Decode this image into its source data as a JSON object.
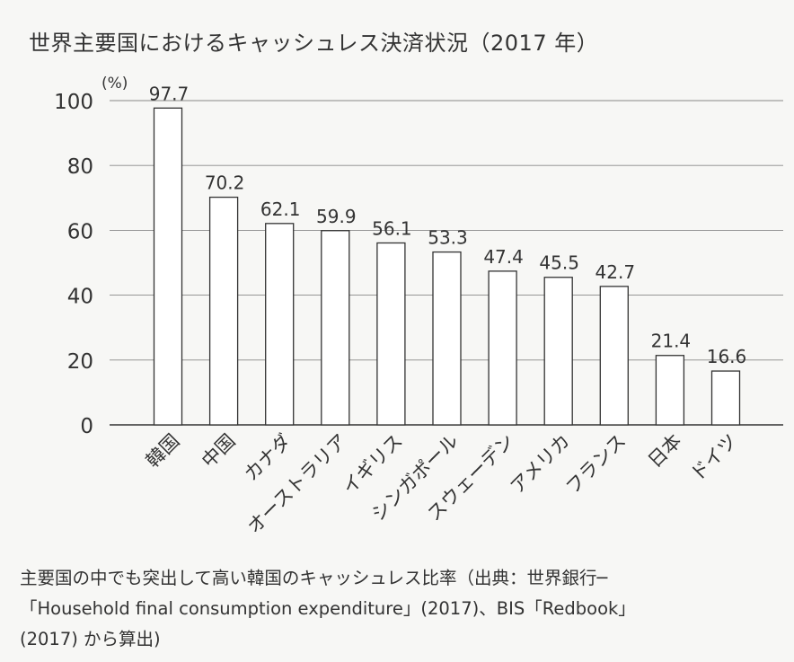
{
  "title": "世界主要国におけるキャッシュレス決済状況（2017 年）",
  "chart_data": {
    "type": "bar",
    "unit": "(%)",
    "categories": [
      "韓国",
      "中国",
      "カナダ",
      "オーストラリア",
      "イギリス",
      "シンガポール",
      "スウェーデン",
      "アメリカ",
      "フランス",
      "日本",
      "ドイツ"
    ],
    "values": [
      97.7,
      70.2,
      62.1,
      59.9,
      56.1,
      53.3,
      47.4,
      45.5,
      42.7,
      21.4,
      16.6
    ],
    "value_labels": [
      "97.7",
      "70.2",
      "62.1",
      "59.9",
      "56.1",
      "53.3",
      "47.4",
      "45.5",
      "42.7",
      "21.4",
      "16.6"
    ],
    "yticks": [
      "0",
      "20",
      "40",
      "60",
      "80",
      "100"
    ],
    "ylim": [
      0,
      100
    ],
    "grid": true,
    "bar_fill": "#ffffff",
    "bar_stroke": "#333333",
    "grid_color": "#888888"
  },
  "caption": {
    "line1": "主要国の中でも突出して高い韓国のキャッシュレス比率（出典：世界銀行─",
    "line2": "「Household final consumption expenditure」(2017)、BIS「Redbook」",
    "line3": "(2017) から算出)"
  }
}
